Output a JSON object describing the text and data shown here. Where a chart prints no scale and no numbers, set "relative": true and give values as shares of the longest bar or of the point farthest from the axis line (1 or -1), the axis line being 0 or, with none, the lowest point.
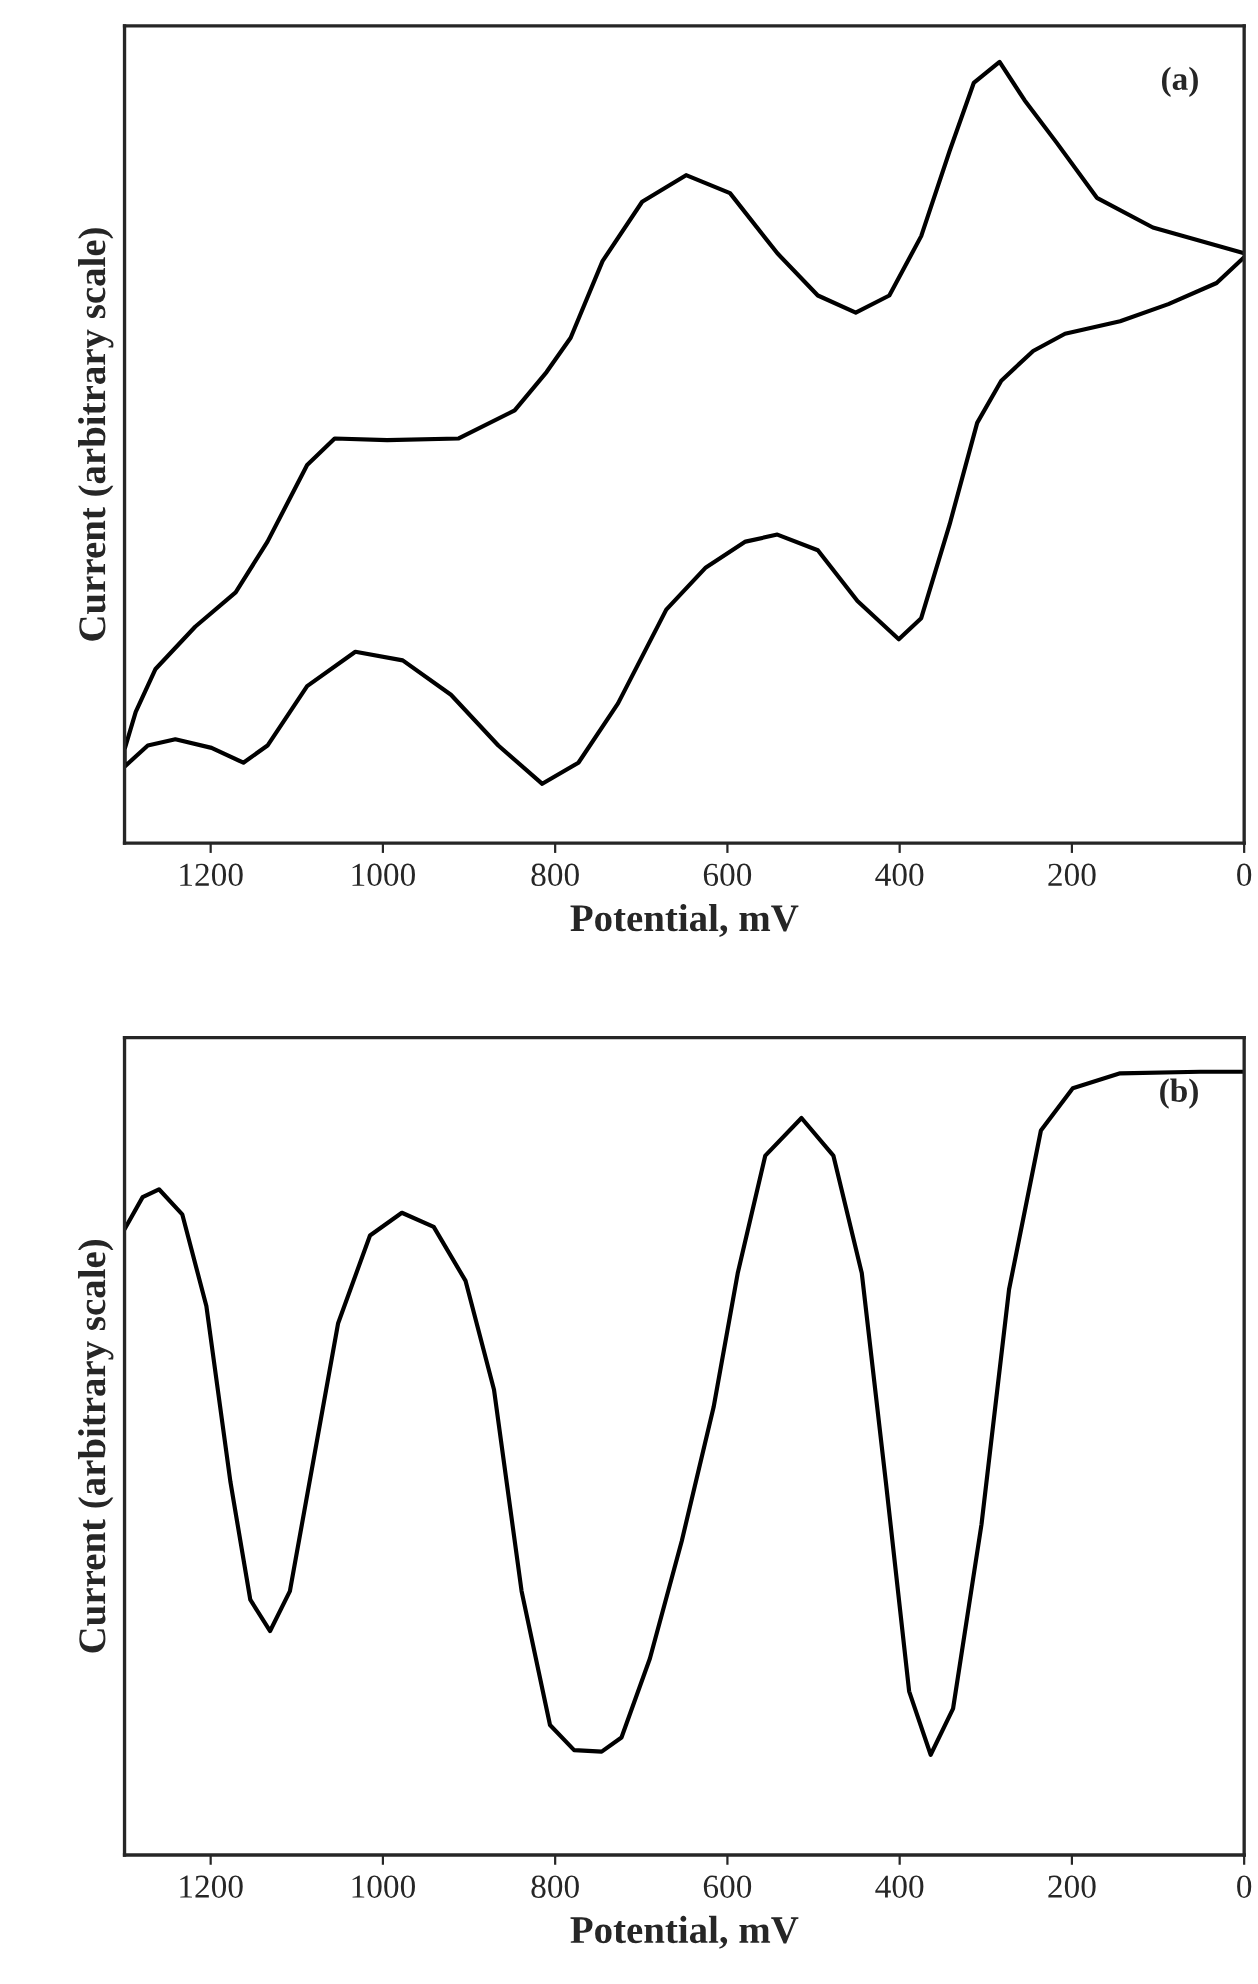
{
  "chart_data": [
    {
      "type": "line",
      "relative": true,
      "xlabel": "Potential, mV",
      "ylabel": "Current (arbitrary scale)",
      "annotations": [
        "(a)"
      ],
      "xlim": [
        1300,
        0
      ],
      "xticks": [
        1200,
        1000,
        800,
        600,
        400,
        200,
        0
      ],
      "grid": false,
      "series": [
        {
          "color": "#000000",
          "x": [
            0,
            106,
            171,
            218,
            255,
            284,
            314,
            342,
            375,
            412,
            451,
            495,
            542,
            597,
            648,
            699,
            745,
            782,
            810,
            847,
            912,
            995,
            1056,
            1088,
            1134,
            1171,
            1218,
            1264,
            1287,
            1300,
            1300,
            1273,
            1241,
            1199,
            1162,
            1134,
            1088,
            1032,
            977,
            921,
            866,
            815,
            773,
            727,
            671,
            625,
            579,
            542,
            495,
            449,
            401,
            375,
            342,
            310,
            282,
            245,
            208,
            144,
            88,
            32,
            0
          ],
          "values": [
            0.755,
            0.788,
            0.826,
            0.897,
            0.951,
            1.0,
            0.973,
            0.886,
            0.777,
            0.701,
            0.679,
            0.701,
            0.755,
            0.832,
            0.855,
            0.821,
            0.745,
            0.647,
            0.603,
            0.554,
            0.518,
            0.516,
            0.518,
            0.484,
            0.386,
            0.321,
            0.277,
            0.223,
            0.168,
            0.12,
            0.098,
            0.125,
            0.133,
            0.122,
            0.103,
            0.125,
            0.201,
            0.245,
            0.234,
            0.19,
            0.125,
            0.076,
            0.103,
            0.179,
            0.299,
            0.353,
            0.386,
            0.395,
            0.375,
            0.31,
            0.261,
            0.288,
            0.408,
            0.538,
            0.592,
            0.63,
            0.652,
            0.668,
            0.69,
            0.717,
            0.75
          ]
        }
      ]
    },
    {
      "type": "line",
      "relative": true,
      "xlabel": "Potential, mV",
      "ylabel": "Current (arbitrary scale)",
      "annotations": [
        "(b)"
      ],
      "xlim": [
        1300,
        0
      ],
      "xticks": [
        1200,
        1000,
        800,
        600,
        400,
        200,
        0
      ],
      "grid": false,
      "series": [
        {
          "color": "#000000",
          "x": [
            1300,
            1279,
            1260,
            1233,
            1205,
            1177,
            1154,
            1131,
            1108,
            1080,
            1052,
            1015,
            978,
            941,
            904,
            871,
            839,
            806,
            778,
            746,
            723,
            690,
            653,
            616,
            588,
            556,
            514,
            477,
            444,
            416,
            389,
            364,
            338,
            305,
            273,
            236,
            199,
            144,
            51,
            0
          ],
          "values": [
            0.799,
            0.84,
            0.85,
            0.818,
            0.701,
            0.476,
            0.326,
            0.286,
            0.337,
            0.508,
            0.679,
            0.791,
            0.82,
            0.802,
            0.733,
            0.594,
            0.337,
            0.166,
            0.134,
            0.132,
            0.15,
            0.251,
            0.401,
            0.572,
            0.743,
            0.893,
            0.941,
            0.893,
            0.743,
            0.476,
            0.209,
            0.128,
            0.187,
            0.422,
            0.722,
            0.925,
            0.979,
            0.998,
            1.0,
            1.0
          ]
        }
      ]
    }
  ]
}
